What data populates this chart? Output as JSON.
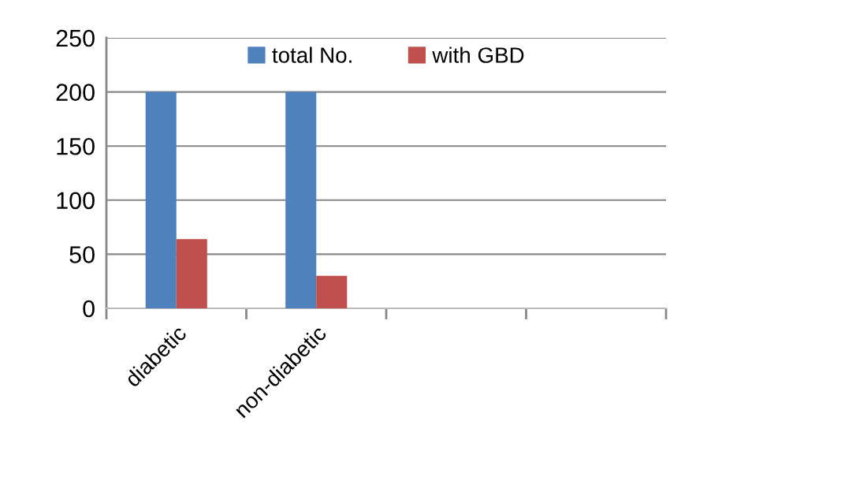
{
  "chart_data": {
    "type": "bar",
    "categories": [
      "diabetic",
      "non-diabetic",
      null,
      null
    ],
    "series": [
      {
        "name": "total No.",
        "color": "#4f81bd",
        "values": [
          200,
          200,
          null,
          null
        ]
      },
      {
        "name": "with GBD",
        "color": "#c0504d",
        "values": [
          64,
          30,
          null,
          null
        ]
      }
    ],
    "ylim": [
      0,
      250
    ],
    "yticks": [
      0,
      50,
      100,
      150,
      200,
      250
    ],
    "grid": "y",
    "legend": "top"
  }
}
